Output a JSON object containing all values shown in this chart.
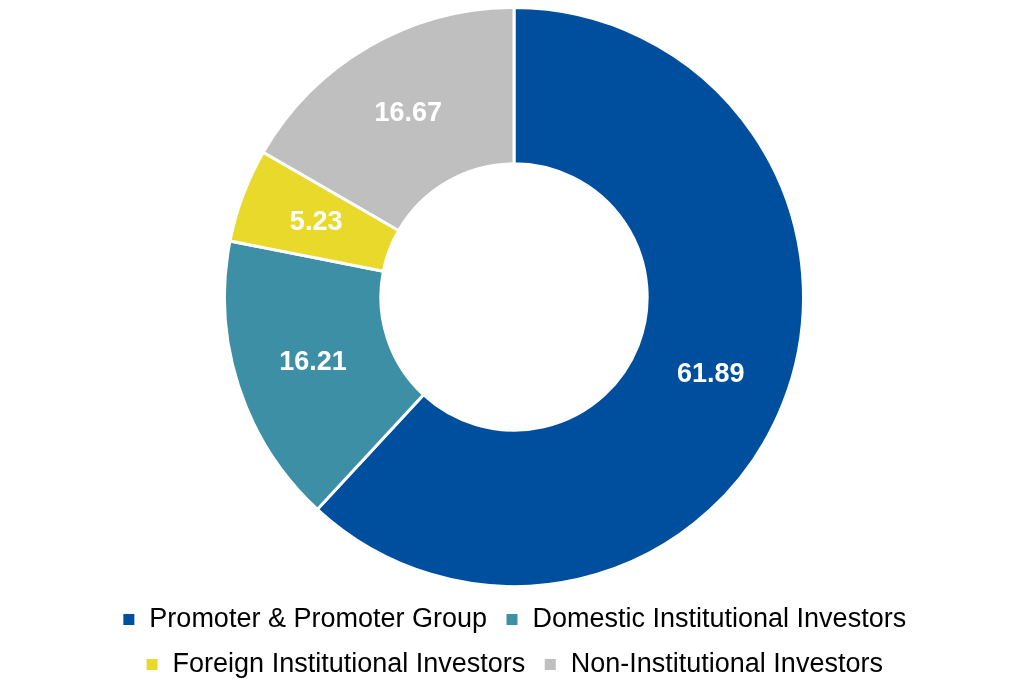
{
  "chart_data": {
    "type": "donut",
    "categories": [
      "Promoter & Promoter Group",
      "Domestic Institutional Investors",
      "Foreign Institutional Investors",
      "Non-Institutional Investors"
    ],
    "values": [
      61.89,
      16.21,
      5.23,
      16.67
    ],
    "colors": [
      "#004f9f",
      "#3d8fa6",
      "#e8d92a",
      "#bfbfbf"
    ],
    "data_labels": true,
    "legend": "bottom"
  }
}
